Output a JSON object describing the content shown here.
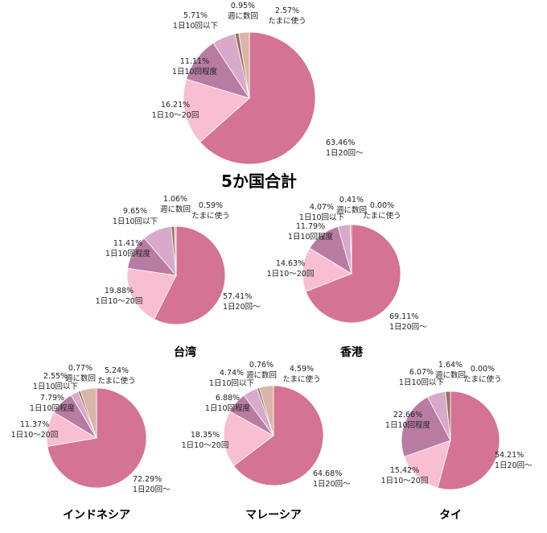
{
  "colors": {
    "1日20回〜": "#d47394",
    "1日10〜20回": "#f8bfd2",
    "1日10回程度": "#b87ca2",
    "1日10回以下": "#d9a9c9",
    "週に数回": "#9a7060",
    "たまに使う": "#d9b5a8"
  },
  "chart_data": [
    {
      "type": "pie",
      "title": "5か国合計",
      "categories": [
        "1日20回〜",
        "1日10〜20回",
        "1日10回程度",
        "1日10回以下",
        "週に数回",
        "たまに使う"
      ],
      "values": [
        63.46,
        16.21,
        11.11,
        5.71,
        0.95,
        2.57
      ],
      "value_labels": [
        "63.46%",
        "16.21%",
        "11.11%",
        "5.71%",
        "0.95%",
        "2.57%"
      ]
    },
    {
      "type": "pie",
      "title": "台湾",
      "categories": [
        "1日20回〜",
        "1日10〜20回",
        "1日10回程度",
        "1日10回以下",
        "週に数回",
        "たまに使う"
      ],
      "values": [
        57.41,
        19.88,
        11.41,
        9.65,
        1.06,
        0.59
      ],
      "value_labels": [
        "57.41%",
        "19.88%",
        "11.41%",
        "9.65%",
        "1.06%",
        "0.59%"
      ]
    },
    {
      "type": "pie",
      "title": "香港",
      "categories": [
        "1日20回〜",
        "1日10〜20回",
        "1日10回程度",
        "1日10回以下",
        "週に数回",
        "たまに使う"
      ],
      "values": [
        69.11,
        14.63,
        11.79,
        4.07,
        0.41,
        0.0
      ],
      "value_labels": [
        "69.11%",
        "14.63%",
        "11.79%",
        "4.07%",
        "0.41%",
        "0.00%"
      ]
    },
    {
      "type": "pie",
      "title": "インドネシア",
      "categories": [
        "1日20回〜",
        "1日10〜20回",
        "1日10回程度",
        "1日10回以下",
        "週に数回",
        "たまに使う"
      ],
      "values": [
        72.29,
        11.37,
        7.79,
        2.55,
        0.77,
        5.24
      ],
      "value_labels": [
        "72.29%",
        "11.37%",
        "7.79%",
        "2.55%",
        "0.77%",
        "5.24%"
      ]
    },
    {
      "type": "pie",
      "title": "マレーシア",
      "categories": [
        "1日20回〜",
        "1日10〜20回",
        "1日10回程度",
        "1日10回以下",
        "週に数回",
        "たまに使う"
      ],
      "values": [
        64.68,
        18.35,
        6.88,
        4.74,
        0.76,
        4.59
      ],
      "value_labels": [
        "64.68%",
        "18.35%",
        "6.88%",
        "4.74%",
        "0.76%",
        "4.59%"
      ]
    },
    {
      "type": "pie",
      "title": "タイ",
      "categories": [
        "1日20回〜",
        "1日10〜20回",
        "1日10回程度",
        "1日10回以下",
        "週に数回",
        "たまに使う"
      ],
      "values": [
        54.21,
        15.42,
        22.66,
        6.07,
        1.64,
        0.0
      ],
      "value_labels": [
        "54.21%",
        "15.42%",
        "22.66%",
        "6.07%",
        "1.64%",
        "0.00%"
      ]
    }
  ]
}
